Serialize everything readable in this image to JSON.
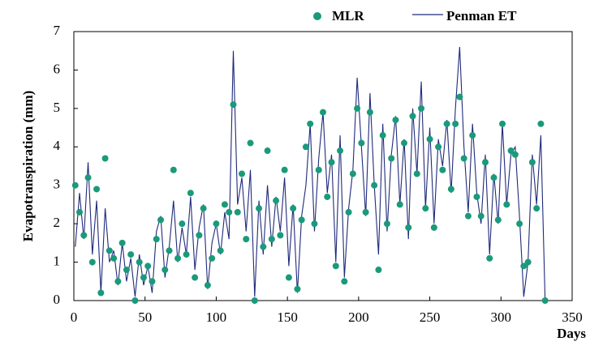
{
  "chart_data": {
    "type": "line",
    "ylabel": "Evapotranspiration  (mm)",
    "xlabel": "Days",
    "x": [
      1,
      4,
      7,
      10,
      13,
      16,
      19,
      22,
      25,
      28,
      31,
      34,
      37,
      40,
      43,
      46,
      49,
      52,
      55,
      58,
      61,
      64,
      67,
      70,
      73,
      76,
      79,
      82,
      85,
      88,
      91,
      94,
      97,
      100,
      103,
      106,
      109,
      112,
      115,
      118,
      121,
      124,
      127,
      130,
      133,
      136,
      139,
      142,
      145,
      148,
      151,
      154,
      157,
      160,
      163,
      166,
      169,
      172,
      175,
      178,
      181,
      184,
      187,
      190,
      193,
      196,
      199,
      202,
      205,
      208,
      211,
      214,
      217,
      220,
      223,
      226,
      229,
      232,
      235,
      238,
      241,
      244,
      247,
      250,
      253,
      256,
      259,
      262,
      265,
      268,
      271,
      274,
      277,
      280,
      283,
      286,
      289,
      292,
      295,
      298,
      301,
      304,
      307,
      310,
      313,
      316,
      319,
      322,
      325,
      328,
      331
    ],
    "series": [
      {
        "name": "MLR",
        "kind": "scatter",
        "color": "#1a9a7a",
        "values": [
          3.0,
          2.3,
          1.7,
          3.2,
          1.0,
          2.9,
          0.2,
          3.7,
          1.3,
          1.1,
          0.5,
          1.5,
          0.8,
          1.2,
          0.0,
          1.0,
          0.6,
          0.9,
          0.5,
          1.6,
          2.1,
          0.8,
          1.3,
          3.4,
          1.1,
          2.0,
          1.2,
          2.8,
          0.6,
          1.7,
          2.4,
          0.4,
          1.1,
          2.0,
          1.3,
          2.5,
          2.3,
          5.1,
          2.3,
          3.3,
          1.6,
          4.1,
          0.0,
          2.4,
          1.4,
          3.9,
          1.6,
          2.6,
          1.7,
          3.4,
          0.6,
          2.4,
          0.3,
          2.1,
          4.0,
          4.6,
          2.0,
          3.4,
          4.9,
          2.7,
          3.6,
          0.9,
          3.9,
          0.5,
          2.3,
          3.3,
          5.0,
          4.1,
          2.3,
          4.9,
          3.0,
          0.8,
          4.3,
          2.0,
          3.7,
          4.7,
          2.5,
          4.1,
          1.9,
          4.8,
          3.3,
          5.0,
          2.4,
          4.2,
          1.9,
          4.0,
          3.4,
          4.6,
          2.9,
          4.6,
          5.3,
          3.7,
          2.2,
          4.3,
          2.7,
          2.2,
          3.6,
          1.1,
          3.2,
          2.1,
          4.6,
          2.5,
          3.9,
          3.8,
          2.0,
          0.9,
          1.0,
          3.6,
          2.4,
          4.6,
          0.0
        ]
      },
      {
        "name": "Penman ET",
        "kind": "line",
        "color": "#1f2a7a",
        "values": [
          1.4,
          2.8,
          1.6,
          3.6,
          1.2,
          2.6,
          0.2,
          2.4,
          1.0,
          1.3,
          0.4,
          1.5,
          0.5,
          1.1,
          0.1,
          1.2,
          0.4,
          0.9,
          0.2,
          1.8,
          2.2,
          0.6,
          1.4,
          2.6,
          1.0,
          1.9,
          1.2,
          2.7,
          0.8,
          1.9,
          2.5,
          0.3,
          1.5,
          2.0,
          1.2,
          2.3,
          1.6,
          6.5,
          2.5,
          3.2,
          1.8,
          3.4,
          0.1,
          2.6,
          1.2,
          3.0,
          1.4,
          2.7,
          1.8,
          3.2,
          0.9,
          2.5,
          0.2,
          2.2,
          3.0,
          4.6,
          1.8,
          3.7,
          4.9,
          2.8,
          3.8,
          1.0,
          4.3,
          0.6,
          2.4,
          3.4,
          5.8,
          4.0,
          2.2,
          5.4,
          3.0,
          1.2,
          4.6,
          1.8,
          3.8,
          4.8,
          2.5,
          4.2,
          1.6,
          5.0,
          3.3,
          5.7,
          2.4,
          4.5,
          2.0,
          4.2,
          3.5,
          4.7,
          2.8,
          5.0,
          6.6,
          4.0,
          2.3,
          4.6,
          2.8,
          2.0,
          3.8,
          1.2,
          3.3,
          2.0,
          4.6,
          2.5,
          3.8,
          4.0,
          2.2,
          0.1,
          1.0,
          3.8,
          2.5,
          4.3,
          0.0
        ]
      }
    ],
    "xlim": [
      0,
      350
    ],
    "xticks": [
      0,
      50,
      100,
      150,
      200,
      250,
      300,
      350
    ],
    "ylim": [
      0,
      7
    ],
    "yticks": [
      0,
      1,
      2,
      3,
      4,
      5,
      6,
      7
    ]
  }
}
